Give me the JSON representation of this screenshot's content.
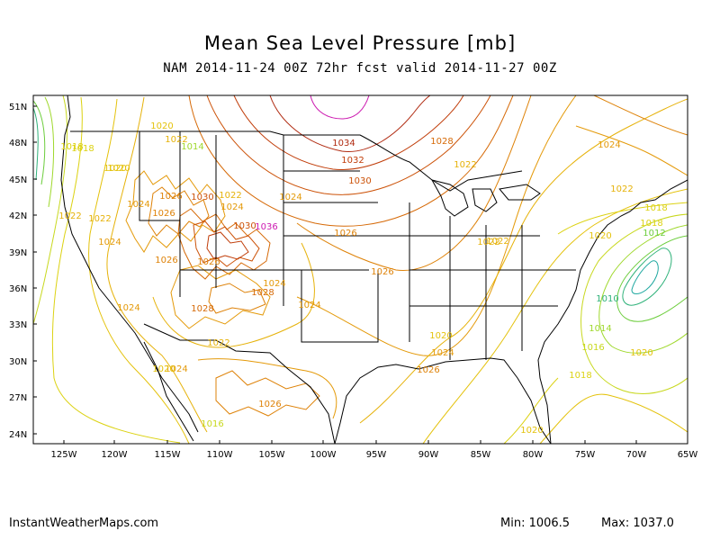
{
  "title": "Mean Sea Level Pressure [mb]",
  "subtitle": "NAM 2014-11-24 00Z 72hr fcst valid 2014-11-27 00Z",
  "credit": "InstantWeatherMaps.com",
  "stats": {
    "min_label": "Min: 1006.5",
    "max_label": "Max: 1037.0"
  },
  "axes": {
    "lat_ticks": [
      "51N",
      "48N",
      "45N",
      "42N",
      "39N",
      "36N",
      "33N",
      "30N",
      "27N",
      "24N"
    ],
    "lon_ticks": [
      "125W",
      "120W",
      "115W",
      "110W",
      "105W",
      "100W",
      "95W",
      "90W",
      "85W",
      "80W",
      "75W",
      "70W",
      "65W"
    ]
  },
  "colors": {
    "c1010": "#2fb27a",
    "c1012": "#6ccd3c",
    "c1014": "#9fd82c",
    "c1016": "#c8d81e",
    "c1018": "#dcd212",
    "c1020": "#e4c20c",
    "c1022": "#e6b20a",
    "c1024": "#e49a0a",
    "c1026": "#de8208",
    "c1028": "#d66a08",
    "c1030": "#cc5208",
    "c1032": "#c03c08",
    "c1034": "#b02a10",
    "c1036": "#cc1ab0"
  },
  "contour_labels": [
    {
      "text": "1018",
      "color": "c1018"
    },
    {
      "text": "1020",
      "color": "c1020"
    },
    {
      "text": "1022",
      "color": "c1022"
    },
    {
      "text": "1014",
      "color": "c1014"
    },
    {
      "text": "1020",
      "color": "c1020"
    },
    {
      "text": "1024",
      "color": "c1024"
    },
    {
      "text": "1026",
      "color": "c1026"
    },
    {
      "text": "1030",
      "color": "c1030"
    },
    {
      "text": "1022",
      "color": "c1022"
    },
    {
      "text": "1024",
      "color": "c1024"
    },
    {
      "text": "1026",
      "color": "c1026"
    },
    {
      "text": "1030",
      "color": "c1030"
    },
    {
      "text": "1036",
      "color": "c1036"
    },
    {
      "text": "1022",
      "color": "c1022"
    },
    {
      "text": "1024",
      "color": "c1024"
    },
    {
      "text": "1028",
      "color": "c1028"
    },
    {
      "text": "1026",
      "color": "c1026"
    },
    {
      "text": "1024",
      "color": "c1024"
    },
    {
      "text": "1028",
      "color": "c1028"
    },
    {
      "text": "1024",
      "color": "c1024"
    },
    {
      "text": "1022",
      "color": "c1022"
    },
    {
      "text": "1024",
      "color": "c1024"
    },
    {
      "text": "1022",
      "color": "c1022"
    },
    {
      "text": "1020",
      "color": "c1020"
    },
    {
      "text": "1018",
      "color": "c1018"
    },
    {
      "text": "1020",
      "color": "c1020"
    },
    {
      "text": "1026",
      "color": "c1026"
    },
    {
      "text": "1026",
      "color": "c1026"
    },
    {
      "text": "1016",
      "color": "c1016"
    },
    {
      "text": "1024",
      "color": "c1024"
    },
    {
      "text": "1034",
      "color": "c1034"
    },
    {
      "text": "1032",
      "color": "c1032"
    },
    {
      "text": "1030",
      "color": "c1030"
    },
    {
      "text": "1028",
      "color": "c1028"
    },
    {
      "text": "1026",
      "color": "c1026"
    },
    {
      "text": "1026",
      "color": "c1026"
    },
    {
      "text": "1024",
      "color": "c1024"
    },
    {
      "text": "1022",
      "color": "c1022"
    },
    {
      "text": "1022",
      "color": "c1022"
    },
    {
      "text": "1020",
      "color": "c1020"
    },
    {
      "text": "1022",
      "color": "c1022"
    },
    {
      "text": "1024",
      "color": "c1024"
    },
    {
      "text": "1026",
      "color": "c1026"
    },
    {
      "text": "1024",
      "color": "c1024"
    },
    {
      "text": "1022",
      "color": "c1022"
    },
    {
      "text": "1020",
      "color": "c1020"
    },
    {
      "text": "1018",
      "color": "c1018"
    },
    {
      "text": "1018",
      "color": "c1018"
    },
    {
      "text": "1012",
      "color": "c1012"
    },
    {
      "text": "1010",
      "color": "c1010"
    },
    {
      "text": "1014",
      "color": "c1014"
    },
    {
      "text": "1016",
      "color": "c1016"
    },
    {
      "text": "1018",
      "color": "c1018"
    },
    {
      "text": "1020",
      "color": "c1020"
    },
    {
      "text": "1020",
      "color": "c1020"
    }
  ]
}
